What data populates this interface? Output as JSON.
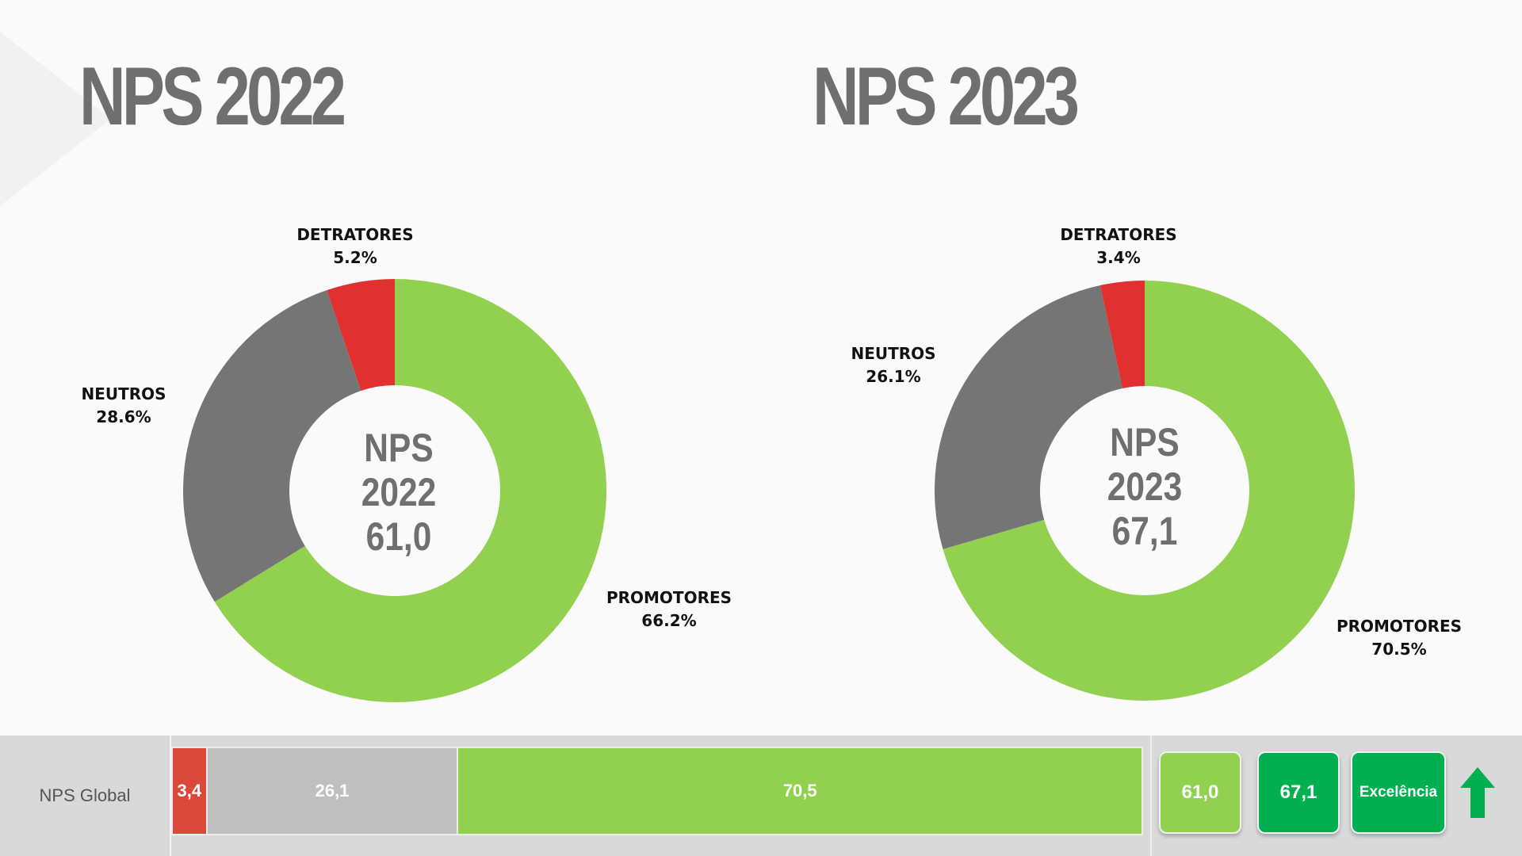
{
  "titles": {
    "left": "NPS 2022",
    "right": "NPS 2023"
  },
  "colors": {
    "promotores": "#92d050",
    "neutros": "#757575",
    "detratores": "#e03030",
    "accent": "#00b050"
  },
  "chart_data": [
    {
      "type": "pie",
      "title": "NPS 2022",
      "center_lines": [
        "NPS",
        "2022",
        "61,0"
      ],
      "slices": [
        {
          "name": "PROMOTORES",
          "label": "66.2%",
          "value": 66.2
        },
        {
          "name": "NEUTROS",
          "label": "28.6%",
          "value": 28.6
        },
        {
          "name": "DETRATORES",
          "label": "5.2%",
          "value": 5.2
        }
      ]
    },
    {
      "type": "pie",
      "title": "NPS 2023",
      "center_lines": [
        "NPS",
        "2023",
        "67,1"
      ],
      "slices": [
        {
          "name": "PROMOTORES",
          "label": "70.5%",
          "value": 70.5
        },
        {
          "name": "NEUTROS",
          "label": "26.1%",
          "value": 26.1
        },
        {
          "name": "DETRATORES",
          "label": "3.4%",
          "value": 3.4
        }
      ]
    },
    {
      "type": "bar",
      "orientation": "horizontal-stacked",
      "categories": [
        "NPS Global"
      ],
      "series": [
        {
          "value": 3.4,
          "label": "3,4"
        },
        {
          "value": 26.1,
          "label": "26,1"
        },
        {
          "value": 70.5,
          "label": "70,5"
        }
      ]
    }
  ],
  "bottom": {
    "row_label": "NPS Global",
    "score_2022": "61,0",
    "score_2023": "67,1",
    "level": "Excelência",
    "trend_icon": "arrow-up-icon"
  }
}
